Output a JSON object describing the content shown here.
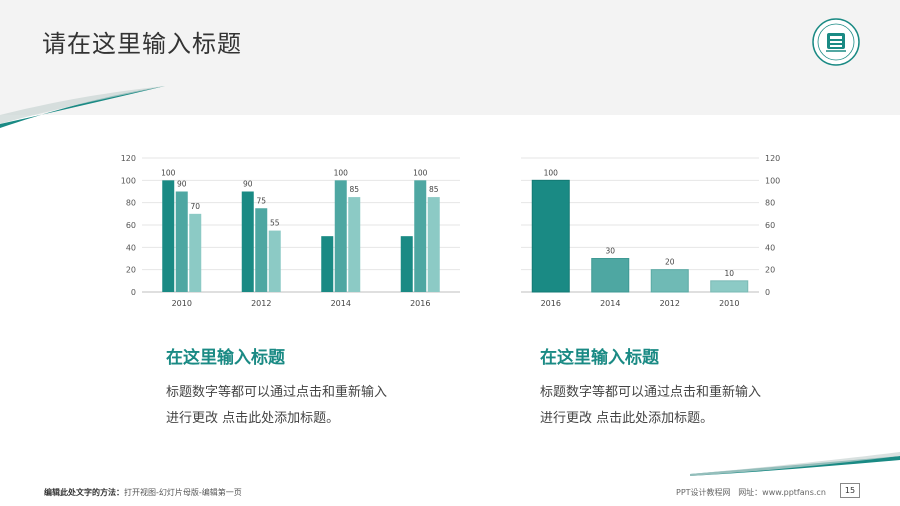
{
  "header": {
    "title": "请在这里输入标题",
    "logo": "university-seal-icon"
  },
  "colors": {
    "dark": "#1a8a84",
    "mid": "#4ea7a2",
    "light": "#8ccac5",
    "grid": "#e6e6e6",
    "accent": "#1a8a84"
  },
  "chart_left": {
    "type": "bar",
    "categories": [
      "2010",
      "2012",
      "2014",
      "2016"
    ],
    "series": [
      {
        "values": [
          100,
          90,
          50,
          50
        ],
        "labels": [
          "100",
          "90",
          "",
          ""
        ]
      },
      {
        "values": [
          90,
          75,
          100,
          100
        ],
        "labels": [
          "90",
          "75",
          "100",
          "100"
        ]
      },
      {
        "values": [
          70,
          55,
          85,
          85
        ],
        "labels": [
          "70",
          "55",
          "85",
          "85"
        ]
      }
    ],
    "yticks": [
      "0",
      "20",
      "40",
      "60",
      "80",
      "100",
      "120"
    ],
    "ylim": [
      0,
      120
    ],
    "axis_side": "left"
  },
  "chart_right": {
    "type": "bar",
    "categories": [
      "2016",
      "2014",
      "2012",
      "2010"
    ],
    "values": [
      100,
      30,
      20,
      10
    ],
    "labels": [
      "100",
      "30",
      "20",
      "10"
    ],
    "yticks": [
      "0",
      "20",
      "40",
      "60",
      "80",
      "100",
      "120"
    ],
    "ylim": [
      0,
      120
    ],
    "axis_side": "right"
  },
  "block_left": {
    "title": "在这里输入标题",
    "line1": "标题数字等都可以通过点击和重新输入",
    "line2": "进行更改 点击此处添加标题。"
  },
  "block_right": {
    "title": "在这里输入标题",
    "line1": "标题数字等都可以通过点击和重新输入",
    "line2": "进行更改 点击此处添加标题。"
  },
  "footer": {
    "left_bold": "编辑此处文字的方法：",
    "left_rest": "打开视图-幻灯片母版-编辑第一页",
    "site_label": "PPT设计教程网",
    "url": "网址：www.pptfans.cn",
    "page": "15"
  }
}
